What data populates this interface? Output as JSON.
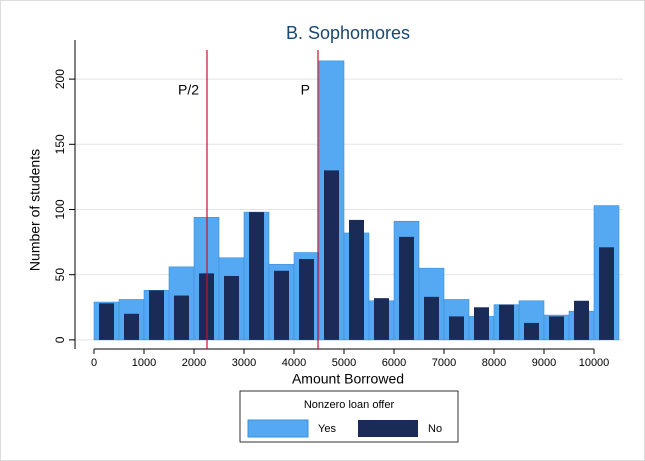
{
  "chart_data": {
    "type": "histogram",
    "title": "B. Sophomores",
    "xlabel": "Amount Borrowed",
    "ylabel": "Number of students",
    "bins": [
      0,
      500,
      1000,
      1500,
      2000,
      2500,
      3000,
      3500,
      4000,
      4500,
      5000,
      5500,
      6000,
      6500,
      7000,
      7500,
      8000,
      8500,
      9000,
      9500,
      10000,
      10500
    ],
    "series": [
      {
        "name": "Yes",
        "color": "#55a8f2",
        "values": [
          29,
          31,
          38,
          56,
          94,
          63,
          98,
          58,
          67,
          214,
          82,
          30,
          91,
          55,
          31,
          18,
          27,
          30,
          19,
          22,
          103
        ]
      },
      {
        "name": "No",
        "color": "#1a2b57",
        "values": [
          28,
          20,
          38,
          34,
          51,
          49,
          98,
          53,
          62,
          130,
          92,
          32,
          79,
          33,
          18,
          25,
          27,
          13,
          18,
          30,
          71
        ]
      }
    ],
    "legend_title": "Nonzero loan offer",
    "vlines": [
      {
        "x": 2260,
        "label": "P/2"
      },
      {
        "x": 4480,
        "label": "P"
      }
    ],
    "vline_color": "#c8102e",
    "xlim": [
      -380,
      10580
    ],
    "ylim": [
      -7,
      230
    ],
    "xticks": [
      0,
      1000,
      2000,
      3000,
      4000,
      5000,
      6000,
      7000,
      8000,
      9000,
      10000
    ],
    "yticks": [
      0,
      50,
      100,
      150,
      200
    ],
    "grid": true
  }
}
